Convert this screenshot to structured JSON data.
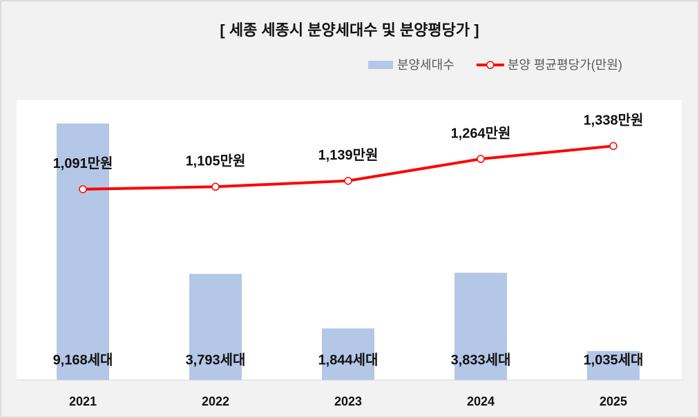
{
  "chart_data": {
    "type": "bar-line",
    "title": "[ 세종 세종시 분양세대수 및 분양평당가 ]",
    "categories": [
      "2021",
      "2022",
      "2023",
      "2024",
      "2025"
    ],
    "series": [
      {
        "name": "분양세대수",
        "type": "bar",
        "color": "#b4c7e7",
        "values": [
          9168,
          3793,
          1844,
          3833,
          1035
        ],
        "value_labels": [
          "9,168세대",
          "3,793세대",
          "1,844세대",
          "3,833세대",
          "1,035세대"
        ]
      },
      {
        "name": "분양 평균평당가(만원)",
        "type": "line",
        "axis": "y2",
        "color": "#ff0000",
        "values": [
          1091,
          1105,
          1139,
          1264,
          1338
        ],
        "value_labels": [
          "1,091만원",
          "1,105만원",
          "1,139만원",
          "1,264만원",
          "1,338만원"
        ]
      }
    ],
    "ylim": [
      0,
      10000
    ],
    "y2lim": [
      0,
      1600
    ],
    "legend": "top-right"
  }
}
